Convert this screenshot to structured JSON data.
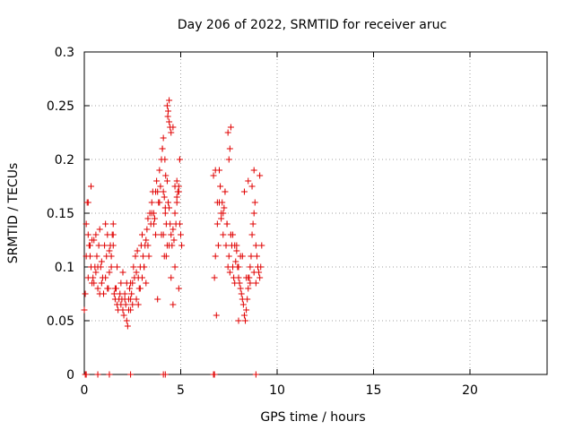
{
  "chart_data": {
    "type": "scatter",
    "title": "Day 206 of 2022, SRMTID for receiver aruc",
    "xlabel": "GPS time / hours",
    "ylabel": "SRMTID / TECUs",
    "xlim": [
      0,
      24
    ],
    "ylim": [
      0,
      0.3
    ],
    "xticks": [
      0,
      5,
      10,
      15,
      20
    ],
    "yticks": [
      0,
      0.05,
      0.1,
      0.15,
      0.2,
      0.25,
      0.3
    ],
    "xtick_labels": [
      "0",
      "5",
      "10",
      "15",
      "20"
    ],
    "ytick_labels": [
      "0",
      "0.05",
      "0.1",
      "0.15",
      "0.2",
      "0.25",
      "0.3"
    ],
    "grid": true,
    "marker": "+",
    "series": [
      {
        "name": "SRMTID",
        "color": "#e00000",
        "x": [
          0.0,
          0.05,
          0.1,
          0.15,
          0.2,
          0.25,
          0.3,
          0.35,
          0.4,
          0.45,
          0.5,
          0.55,
          0.6,
          0.65,
          0.7,
          0.75,
          0.8,
          0.85,
          0.9,
          0.95,
          1.0,
          1.05,
          1.1,
          1.15,
          1.2,
          1.25,
          1.3,
          1.35,
          1.4,
          1.45,
          1.5,
          1.55,
          1.6,
          1.65,
          1.7,
          1.75,
          1.8,
          1.85,
          1.9,
          1.95,
          2.0,
          2.05,
          2.1,
          2.15,
          2.2,
          2.25,
          2.3,
          2.35,
          2.4,
          2.45,
          2.5,
          2.55,
          2.6,
          2.65,
          2.7,
          2.75,
          2.8,
          2.85,
          2.9,
          2.95,
          3.0,
          3.05,
          3.1,
          3.15,
          3.2,
          3.25,
          3.3,
          3.35,
          3.4,
          3.45,
          3.5,
          3.55,
          3.6,
          3.65,
          3.7,
          3.75,
          3.8,
          3.85,
          3.9,
          3.95,
          4.0,
          4.05,
          4.1,
          4.15,
          4.2,
          4.25,
          4.3,
          4.35,
          4.4,
          4.45,
          4.5,
          4.55,
          4.6,
          4.65,
          4.7,
          4.75,
          4.8,
          4.85,
          4.9,
          4.95,
          5.0,
          5.05,
          0.1,
          0.2,
          0.3,
          0.5,
          0.7,
          0.9,
          1.1,
          1.3,
          1.5,
          1.7,
          1.9,
          2.1,
          2.3,
          2.5,
          2.7,
          2.9,
          3.1,
          3.3,
          3.5,
          3.7,
          3.9,
          4.1,
          4.3,
          4.5,
          4.7,
          4.9,
          0.4,
          0.8,
          1.2,
          1.6,
          2.0,
          2.4,
          2.8,
          3.2,
          3.6,
          4.0,
          4.4,
          4.8,
          0.6,
          1.4,
          2.2,
          3.0,
          3.8,
          4.6,
          4.15,
          4.2,
          4.25,
          4.3,
          4.35,
          4.4,
          4.45,
          4.1,
          4.18,
          4.22,
          4.33,
          4.05,
          4.4,
          4.5,
          4.6,
          4.7,
          4.8,
          4.95,
          1.5,
          0.2,
          0.35,
          2.4,
          4.95,
          4.9,
          6.7,
          6.75,
          6.8,
          6.85,
          6.9,
          6.95,
          7.0,
          7.05,
          7.1,
          7.15,
          7.2,
          7.25,
          7.3,
          7.35,
          7.4,
          7.45,
          7.5,
          7.55,
          7.6,
          7.65,
          7.7,
          7.75,
          7.8,
          7.85,
          7.9,
          7.95,
          8.0,
          8.05,
          8.1,
          8.15,
          8.2,
          8.25,
          8.3,
          8.35,
          8.4,
          8.45,
          8.5,
          8.55,
          8.6,
          8.65,
          8.7,
          8.75,
          8.8,
          8.85,
          8.9,
          8.95,
          9.0,
          9.05,
          9.1,
          9.15,
          9.2,
          6.8,
          7.0,
          7.2,
          7.4,
          7.6,
          7.8,
          8.0,
          8.2,
          8.4,
          8.6,
          8.8,
          9.0,
          6.9,
          7.3,
          7.7,
          8.1,
          8.5,
          8.9,
          7.5,
          7.55,
          7.6,
          7.45,
          8.5,
          8.8,
          9.1,
          8.3,
          8.7,
          7.1,
          7.9,
          8.0,
          0.05,
          0.1,
          0.7,
          1.3,
          2.4,
          4.1,
          4.2,
          6.7,
          6.75,
          8.9
        ],
        "y": [
          0.06,
          0.075,
          0.14,
          0.16,
          0.13,
          0.12,
          0.11,
          0.1,
          0.125,
          0.09,
          0.085,
          0.1,
          0.095,
          0.11,
          0.08,
          0.12,
          0.135,
          0.1,
          0.085,
          0.09,
          0.075,
          0.12,
          0.14,
          0.11,
          0.13,
          0.08,
          0.095,
          0.12,
          0.1,
          0.13,
          0.14,
          0.075,
          0.07,
          0.08,
          0.065,
          0.06,
          0.07,
          0.075,
          0.065,
          0.07,
          0.06,
          0.055,
          0.075,
          0.065,
          0.05,
          0.045,
          0.07,
          0.08,
          0.06,
          0.075,
          0.085,
          0.1,
          0.09,
          0.11,
          0.095,
          0.115,
          0.09,
          0.08,
          0.1,
          0.12,
          0.13,
          0.11,
          0.1,
          0.12,
          0.125,
          0.135,
          0.145,
          0.11,
          0.15,
          0.14,
          0.16,
          0.17,
          0.15,
          0.145,
          0.13,
          0.18,
          0.17,
          0.16,
          0.19,
          0.175,
          0.2,
          0.21,
          0.17,
          0.165,
          0.15,
          0.14,
          0.18,
          0.16,
          0.155,
          0.14,
          0.13,
          0.12,
          0.135,
          0.125,
          0.15,
          0.14,
          0.18,
          0.17,
          0.175,
          0.2,
          0.13,
          0.12,
          0.11,
          0.09,
          0.12,
          0.125,
          0.1,
          0.105,
          0.09,
          0.115,
          0.12,
          0.1,
          0.085,
          0.07,
          0.06,
          0.065,
          0.07,
          0.08,
          0.1,
          0.12,
          0.15,
          0.17,
          0.16,
          0.13,
          0.12,
          0.09,
          0.1,
          0.08,
          0.085,
          0.075,
          0.08,
          0.08,
          0.095,
          0.07,
          0.065,
          0.085,
          0.14,
          0.13,
          0.12,
          0.16,
          0.13,
          0.11,
          0.085,
          0.09,
          0.07,
          0.065,
          0.11,
          0.155,
          0.11,
          0.25,
          0.245,
          0.255,
          0.23,
          0.22,
          0.2,
          0.185,
          0.24,
          0.21,
          0.235,
          0.225,
          0.23,
          0.175,
          0.165,
          0.14,
          0.13,
          0.16,
          0.175,
          0.085,
          0.2,
          0.17,
          0.185,
          0.09,
          0.19,
          0.055,
          0.14,
          0.12,
          0.19,
          0.175,
          0.145,
          0.16,
          0.13,
          0.155,
          0.17,
          0.12,
          0.14,
          0.1,
          0.11,
          0.095,
          0.13,
          0.12,
          0.1,
          0.09,
          0.085,
          0.105,
          0.115,
          0.1,
          0.09,
          0.085,
          0.08,
          0.075,
          0.07,
          0.065,
          0.055,
          0.05,
          0.06,
          0.07,
          0.08,
          0.09,
          0.1,
          0.11,
          0.13,
          0.14,
          0.15,
          0.16,
          0.12,
          0.11,
          0.1,
          0.095,
          0.09,
          0.1,
          0.12,
          0.11,
          0.16,
          0.15,
          0.14,
          0.13,
          0.12,
          0.1,
          0.11,
          0.09,
          0.085,
          0.095,
          0.1,
          0.16,
          0.17,
          0.13,
          0.11,
          0.09,
          0.085,
          0.2,
          0.21,
          0.23,
          0.225,
          0.18,
          0.19,
          0.185,
          0.17,
          0.175,
          0.15,
          0.12,
          0.05,
          0.0,
          0.0,
          0.0,
          0.0,
          0.0,
          0.0,
          0.0,
          0.0,
          0.0,
          0.0
        ]
      }
    ]
  }
}
